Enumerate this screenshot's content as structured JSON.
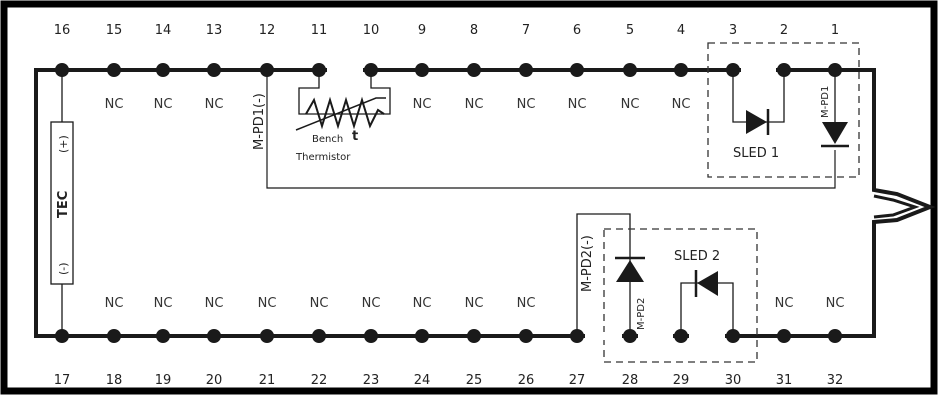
{
  "top_pin_numbers": [
    "16",
    "15",
    "14",
    "13",
    "12",
    "11",
    "10",
    "9",
    "8",
    "7",
    "6",
    "5",
    "4",
    "3",
    "2",
    "1"
  ],
  "bottom_pin_numbers": [
    "17",
    "18",
    "19",
    "20",
    "21",
    "22",
    "23",
    "24",
    "25",
    "26",
    "27",
    "28",
    "29",
    "30",
    "31",
    "32"
  ],
  "top_nc_labels": [
    "NC",
    "NC",
    "NC",
    "NC",
    "NC",
    "NC",
    "NC",
    "NC",
    "NC"
  ],
  "bottom_nc_labels": [
    "NC",
    "NC",
    "NC",
    "NC",
    "NC",
    "NC",
    "NC",
    "NC",
    "NC",
    "NC",
    "NC"
  ],
  "labels": {
    "mpd1_neg": "M-PD1(-)",
    "thermistor_t": "t",
    "thermistor_line1": "Bench",
    "thermistor_line2": "Thermistor",
    "sled1": "SLED 1",
    "mpd1": "M-PD1",
    "tec": "TEC",
    "tec_plus": "(+)",
    "tec_minus": "(-)",
    "mpd2_neg": "M-PD2(-)",
    "mpd2": "M-PD2",
    "sled2": "SLED 2"
  },
  "colors": {
    "line": "#1a1a1a",
    "frame": "#000000",
    "background": "#ffffff"
  }
}
